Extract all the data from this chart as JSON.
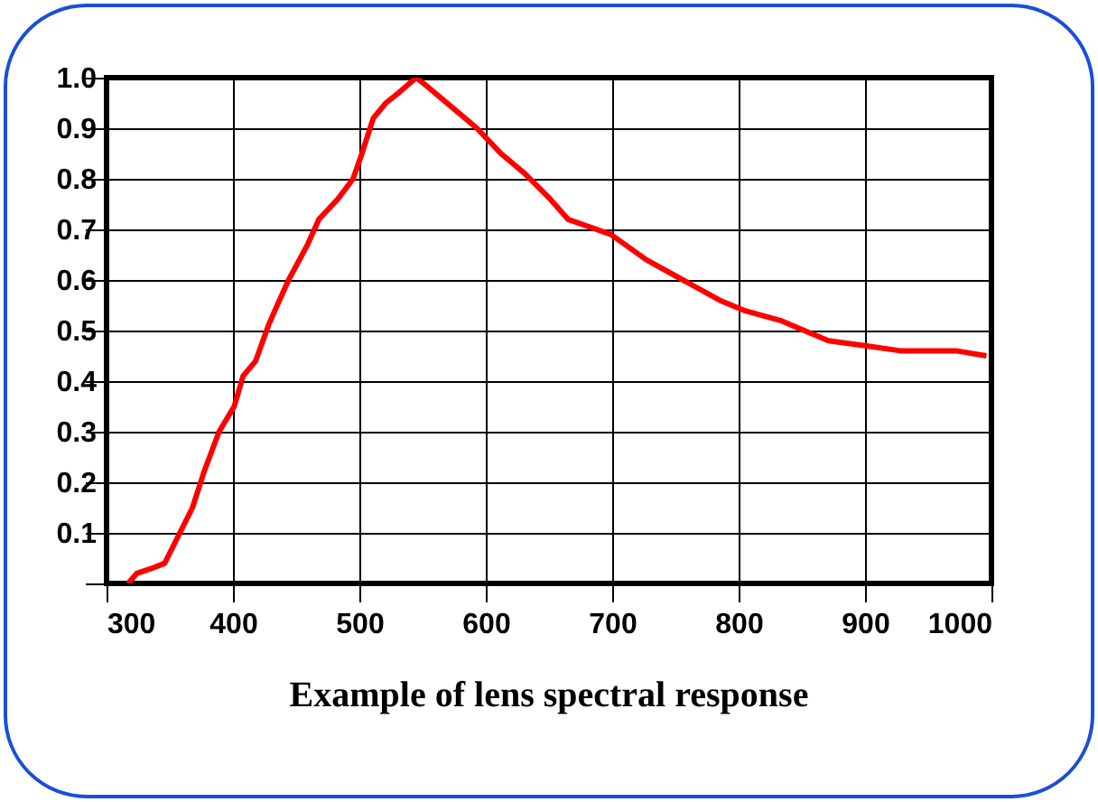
{
  "chart_data": {
    "type": "line",
    "title": "Example of lens spectral response",
    "x": [
      317,
      324,
      336,
      346,
      358,
      368,
      377,
      389,
      401,
      408,
      418,
      428,
      435,
      444,
      459,
      468,
      483,
      495,
      502,
      511,
      521,
      531,
      545,
      555,
      574,
      593,
      612,
      631,
      651,
      665,
      699,
      727,
      756,
      785,
      804,
      833,
      871,
      900,
      928,
      972,
      996
    ],
    "series": [
      {
        "color": "#ff0000",
        "values": [
          0.0,
          0.02,
          0.03,
          0.04,
          0.1,
          0.15,
          0.22,
          0.3,
          0.35,
          0.41,
          0.44,
          0.51,
          0.55,
          0.6,
          0.67,
          0.72,
          0.76,
          0.8,
          0.85,
          0.92,
          0.95,
          0.97,
          1.0,
          0.98,
          0.94,
          0.9,
          0.85,
          0.81,
          0.76,
          0.72,
          0.69,
          0.64,
          0.6,
          0.56,
          0.54,
          0.52,
          0.48,
          0.47,
          0.46,
          0.46,
          0.45
        ]
      }
    ],
    "xlim": [
      300,
      1000
    ],
    "xticks": [
      300,
      400,
      500,
      600,
      700,
      800,
      900,
      1000
    ],
    "ylim": [
      0,
      1
    ],
    "yticks": [
      {
        "value": 0,
        "label": null
      },
      0.1,
      0.2,
      0.3,
      0.4,
      0.5,
      0.6,
      0.7,
      0.8,
      0.9,
      {
        "value": 1,
        "label": "1.0"
      }
    ],
    "grid": true,
    "marker": "none",
    "line_style": "solid"
  }
}
